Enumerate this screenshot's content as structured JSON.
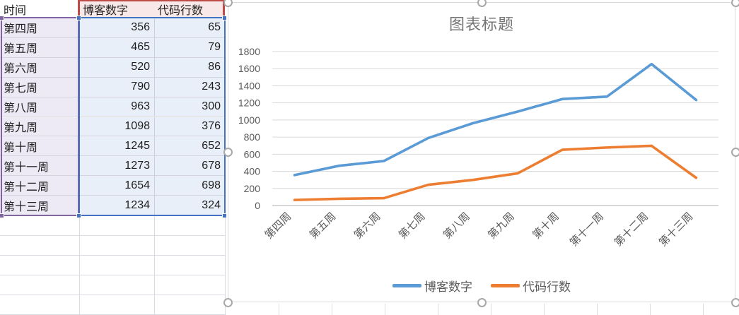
{
  "sheet": {
    "table": {
      "col_headers": [
        "时间",
        "博客数字",
        "代码行数"
      ],
      "rows": [
        {
          "week": "第四周",
          "blog": "356",
          "code": "65"
        },
        {
          "week": "第五周",
          "blog": "465",
          "code": "79"
        },
        {
          "week": "第六周",
          "blog": "520",
          "code": "86"
        },
        {
          "week": "第七周",
          "blog": "790",
          "code": "243"
        },
        {
          "week": "第八周",
          "blog": "963",
          "code": "300"
        },
        {
          "week": "第九周",
          "blog": "1098",
          "code": "376"
        },
        {
          "week": "第十周",
          "blog": "1245",
          "code": "652"
        },
        {
          "week": "第十一周",
          "blog": "1273",
          "code": "678"
        },
        {
          "week": "第十二周",
          "blog": "1654",
          "code": "698"
        },
        {
          "week": "第十三周",
          "blog": "1234",
          "code": "324"
        }
      ]
    },
    "selection_colors": {
      "category_range_border": "#8064A2",
      "category_range_fill": "#EDE9F5",
      "value_range_border": "#4472C4",
      "value_range_fill": "#E9EFF8",
      "series_name_range_border": "#BE4B48",
      "series_name_range_fill": "#F9E8E8"
    }
  },
  "chart_data": {
    "type": "line",
    "title": "图表标题",
    "categories": [
      "第四周",
      "第五周",
      "第六周",
      "第七周",
      "第八周",
      "第九周",
      "第十周",
      "第十一周",
      "第十二周",
      "第十三周"
    ],
    "series": [
      {
        "name": "博客数字",
        "color": "#5B9BD5",
        "values": [
          356,
          465,
          520,
          790,
          963,
          1098,
          1245,
          1273,
          1654,
          1234
        ]
      },
      {
        "name": "代码行数",
        "color": "#ED7D31",
        "values": [
          65,
          79,
          86,
          243,
          300,
          376,
          652,
          678,
          698,
          324
        ]
      }
    ],
    "ylim": [
      0,
      1800
    ],
    "ytick_step": 200,
    "yticks": [
      0,
      200,
      400,
      600,
      800,
      1000,
      1200,
      1400,
      1600,
      1800
    ],
    "legend_position": "bottom",
    "grid": true,
    "text_color": "#595959",
    "gridline_color": "#D9D9D9",
    "axis_color": "#BFBFBF"
  }
}
